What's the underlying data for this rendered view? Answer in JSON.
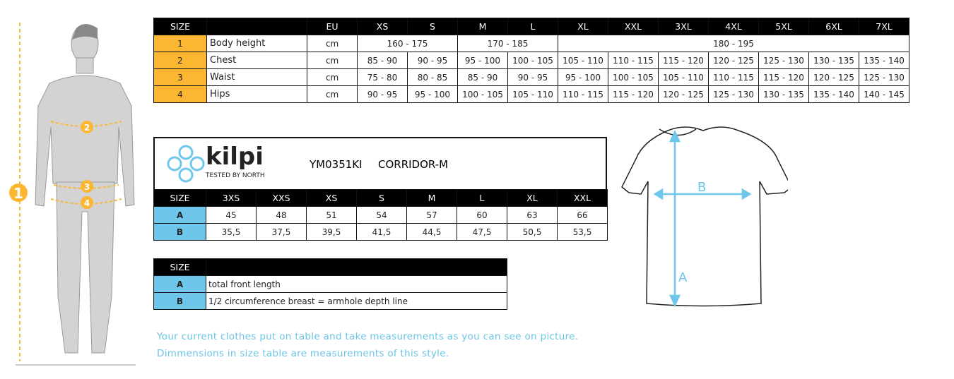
{
  "body_chart": {
    "headers": [
      "SIZE",
      "",
      "EU",
      "XS",
      "S",
      "M",
      "L",
      "XL",
      "XXL",
      "3XL",
      "4XL",
      "5XL",
      "6XL",
      "7XL"
    ],
    "rows": [
      {
        "num": "1",
        "label": "Body height",
        "unit": "cm",
        "spans": [
          [
            "160 - 175",
            2
          ],
          [
            "170 - 185",
            2
          ],
          [
            "180 - 195",
            7
          ]
        ]
      },
      {
        "num": "2",
        "label": "Chest",
        "unit": "cm",
        "values": [
          "85 - 90",
          "90 - 95",
          "95 - 100",
          "100 - 105",
          "105 - 110",
          "110 - 115",
          "115 - 120",
          "120 - 125",
          "125 - 130",
          "130 - 135",
          "135 - 140"
        ]
      },
      {
        "num": "3",
        "label": "Waist",
        "unit": "cm",
        "values": [
          "75 - 80",
          "80 - 85",
          "85 - 90",
          "90 - 95",
          "95 - 100",
          "100 - 105",
          "105 - 110",
          "110 - 115",
          "115 - 120",
          "120 - 125",
          "125 - 130"
        ]
      },
      {
        "num": "4",
        "label": "Hips",
        "unit": "cm",
        "values": [
          "90 - 95",
          "95 - 100",
          "100 - 105",
          "105 - 110",
          "110 - 115",
          "115 - 120",
          "120 - 125",
          "125 - 130",
          "130 - 135",
          "135 - 140",
          "140 - 145"
        ]
      }
    ]
  },
  "brand": {
    "logo": "kilpi",
    "tagline": "Tested by North",
    "code": "YM0351KI",
    "model": "CORRIDOR-M"
  },
  "product_chart": {
    "headers": [
      "SIZE",
      "3XS",
      "XXS",
      "XS",
      "S",
      "M",
      "L",
      "XL",
      "XXL"
    ],
    "rows": [
      {
        "key": "A",
        "values": [
          "45",
          "48",
          "51",
          "54",
          "57",
          "60",
          "63",
          "66"
        ]
      },
      {
        "key": "B",
        "values": [
          "35,5",
          "37,5",
          "39,5",
          "41,5",
          "44,5",
          "47,5",
          "50,5",
          "53,5"
        ]
      }
    ]
  },
  "legend": {
    "header": "SIZE",
    "rows": [
      {
        "key": "A",
        "desc": "total front length"
      },
      {
        "key": "B",
        "desc": "1/2 circumference breast = armhole depth line"
      }
    ]
  },
  "figure_markers": [
    "1",
    "2",
    "3",
    "4"
  ],
  "shirt_labels": [
    "A",
    "B"
  ],
  "notes": [
    "Your current clothes put on table and take measurements as you can see on picture.",
    "Dimmensions in size table are measurements of this style."
  ],
  "colors": {
    "orange": "#fbb731",
    "blue": "#6ec6ea",
    "note_text": "#6cc4e4"
  }
}
